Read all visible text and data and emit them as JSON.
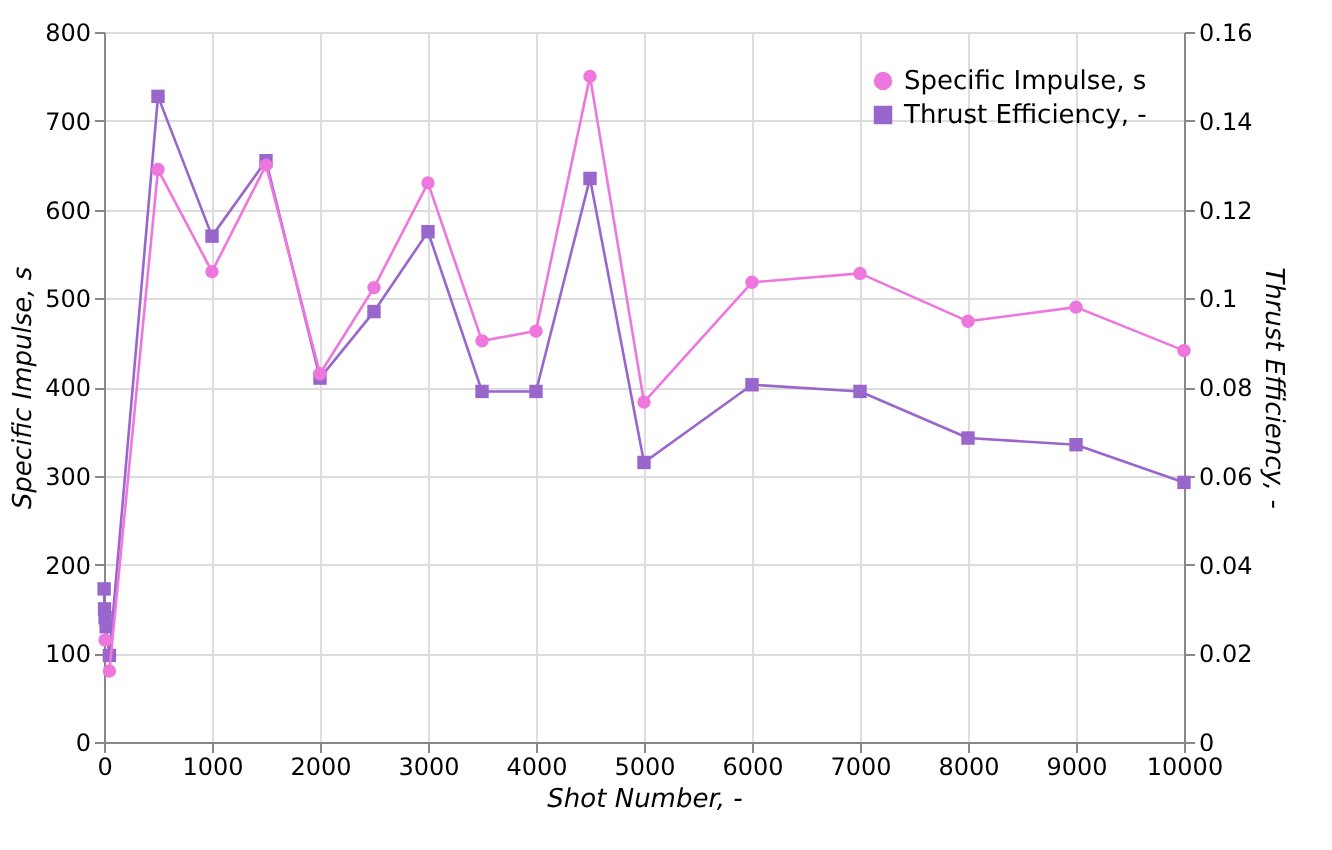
{
  "chart_data": {
    "type": "line",
    "xlabel": "Shot Number, -",
    "ylabel": "Specific Impulse, s",
    "y2label": "Thrust Efficiency, -",
    "x": [
      1,
      5,
      10,
      20,
      50,
      500,
      1000,
      1500,
      2000,
      2500,
      3000,
      3500,
      4000,
      4500,
      5000,
      6000,
      7000,
      8000,
      9000,
      10000
    ],
    "series": [
      {
        "name": "Specific Impulse, s",
        "color": "#ee77dd",
        "marker": "circle",
        "values": [
          null,
          null,
          115,
          null,
          80,
          645,
          530,
          650,
          415,
          512,
          630,
          452,
          463,
          750,
          383,
          518,
          528,
          474,
          490,
          441
        ]
      },
      {
        "name": "Thrust Efficiency, -",
        "color": "#9966cc",
        "marker": "square",
        "axis": "y2",
        "values": [
          0.0345,
          0.03,
          0.028,
          0.026,
          0.0195,
          0.1455,
          0.114,
          0.131,
          0.082,
          0.097,
          0.115,
          0.079,
          0.079,
          0.127,
          0.063,
          0.0805,
          0.079,
          0.0685,
          0.067,
          0.0585
        ]
      }
    ],
    "xlim": [
      0,
      10000
    ],
    "xticks": [
      0,
      1000,
      2000,
      3000,
      4000,
      5000,
      6000,
      7000,
      8000,
      9000,
      10000
    ],
    "ylim": [
      0,
      800
    ],
    "yticks": [
      0,
      100,
      200,
      300,
      400,
      500,
      600,
      700,
      800
    ],
    "y2lim": [
      0,
      0.16
    ],
    "y2ticks": [
      0,
      0.02,
      0.04,
      0.06,
      0.08,
      0.1,
      0.12,
      0.14,
      0.16
    ],
    "grid": true,
    "legend": "top right",
    "line_style": "solid"
  }
}
